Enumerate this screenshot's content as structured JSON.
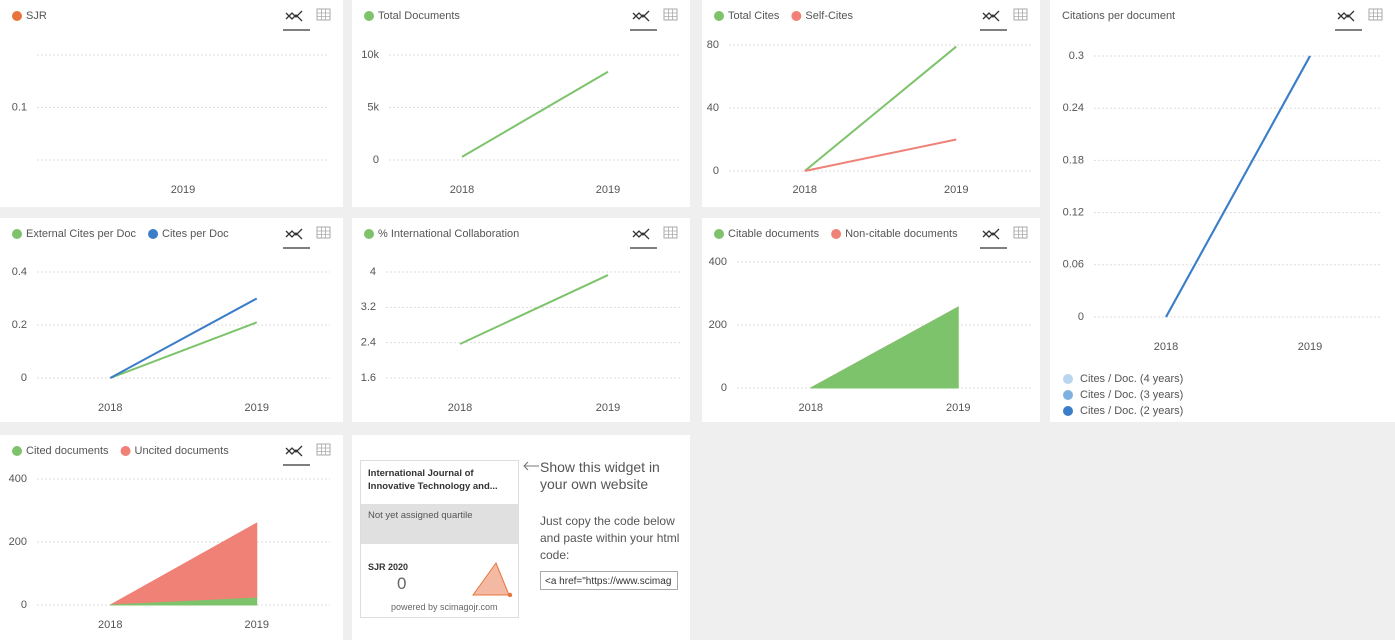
{
  "chart_data": [
    {
      "type": "line",
      "categories": [
        "2019"
      ],
      "series": [
        {
          "name": "SJR",
          "color": "#e8743b",
          "values": [
            null
          ]
        }
      ],
      "ylim": [
        0.05,
        0.15
      ],
      "yticks": [
        0.1
      ],
      "grid": true
    },
    {
      "type": "line",
      "categories": [
        "2018",
        "2019"
      ],
      "series": [
        {
          "name": "Total Documents",
          "color": "#7dc36b",
          "values": [
            300,
            8400
          ]
        }
      ],
      "ylim": [
        0,
        10000
      ],
      "yticks": [
        0,
        {
          "value": 5000,
          "label": "5k"
        },
        {
          "value": 10000,
          "label": "10k"
        }
      ],
      "grid": true
    },
    {
      "type": "line",
      "categories": [
        "2018",
        "2019"
      ],
      "series": [
        {
          "name": "Total Cites",
          "color": "#7dc36b",
          "values": [
            0,
            79
          ]
        },
        {
          "name": "Self-Cites",
          "color": "#ef8177",
          "values": [
            0,
            20
          ]
        }
      ],
      "ylim": [
        0,
        80
      ],
      "yticks": [
        0,
        40,
        80
      ],
      "grid": true
    },
    {
      "type": "line",
      "title": "Citations per document",
      "legend": "bottom",
      "categories": [
        "2018",
        "2019"
      ],
      "series": [
        {
          "name": "Cites / Doc. (4 years)",
          "color": "#b9d5ef",
          "values": [
            0,
            0.3
          ]
        },
        {
          "name": "Cites / Doc. (3 years)",
          "color": "#7eb1e0",
          "values": [
            0,
            0.3
          ]
        },
        {
          "name": "Cites / Doc. (2 years)",
          "color": "#3b7dc8",
          "values": [
            0,
            0.3
          ]
        }
      ],
      "ylim": [
        0,
        0.3
      ],
      "yticks": [
        0,
        0.06,
        0.12,
        0.18,
        0.24,
        0.3
      ],
      "grid": true
    },
    {
      "type": "line",
      "categories": [
        "2018",
        "2019"
      ],
      "series": [
        {
          "name": "External Cites per Doc",
          "color": "#7dc36b",
          "values": [
            0,
            0.21
          ]
        },
        {
          "name": "Cites per Doc",
          "color": "#3b7dc8",
          "values": [
            0,
            0.3
          ]
        }
      ],
      "ylim": [
        0,
        0.4
      ],
      "yticks": [
        0,
        0.2,
        0.4
      ],
      "grid": true
    },
    {
      "type": "line",
      "categories": [
        "2018",
        "2019"
      ],
      "series": [
        {
          "name": "% International Collaboration",
          "color": "#7dc36b",
          "values": [
            2.37,
            3.93
          ]
        }
      ],
      "ylim": [
        1.6,
        4
      ],
      "yticks": [
        1.6,
        2.4,
        3.2,
        4
      ],
      "grid": true
    },
    {
      "type": "area",
      "stacked": true,
      "categories": [
        "2018",
        "2019"
      ],
      "series": [
        {
          "name": "Citable documents",
          "color": "#7dc36b",
          "values": [
            0,
            257
          ]
        },
        {
          "name": "Non-citable documents",
          "color": "#ef8177",
          "values": [
            0,
            0
          ]
        }
      ],
      "ylim": [
        0,
        400
      ],
      "yticks": [
        0,
        200,
        400
      ],
      "grid": true
    },
    {
      "type": "area",
      "stacked": true,
      "categories": [
        "2018",
        "2019"
      ],
      "series": [
        {
          "name": "Cited documents",
          "color": "#7dc36b",
          "values": [
            0,
            22
          ]
        },
        {
          "name": "Uncited documents",
          "color": "#ef8177",
          "values": [
            0,
            238
          ]
        }
      ],
      "ylim": [
        0,
        400
      ],
      "yticks": [
        0,
        200,
        400
      ],
      "grid": true
    }
  ],
  "widget": {
    "title": "International Journal of Innovative Technology and...",
    "quartile": "Not yet assigned quartile",
    "sjr_label": "SJR 2020",
    "sjr_value": 0,
    "powered": "powered by scimagojr.com",
    "heading": "Show this widget in your own website",
    "instructions": "Just copy the code below and paste within your html code:",
    "code": "<a href=\"https://www.scimag"
  }
}
